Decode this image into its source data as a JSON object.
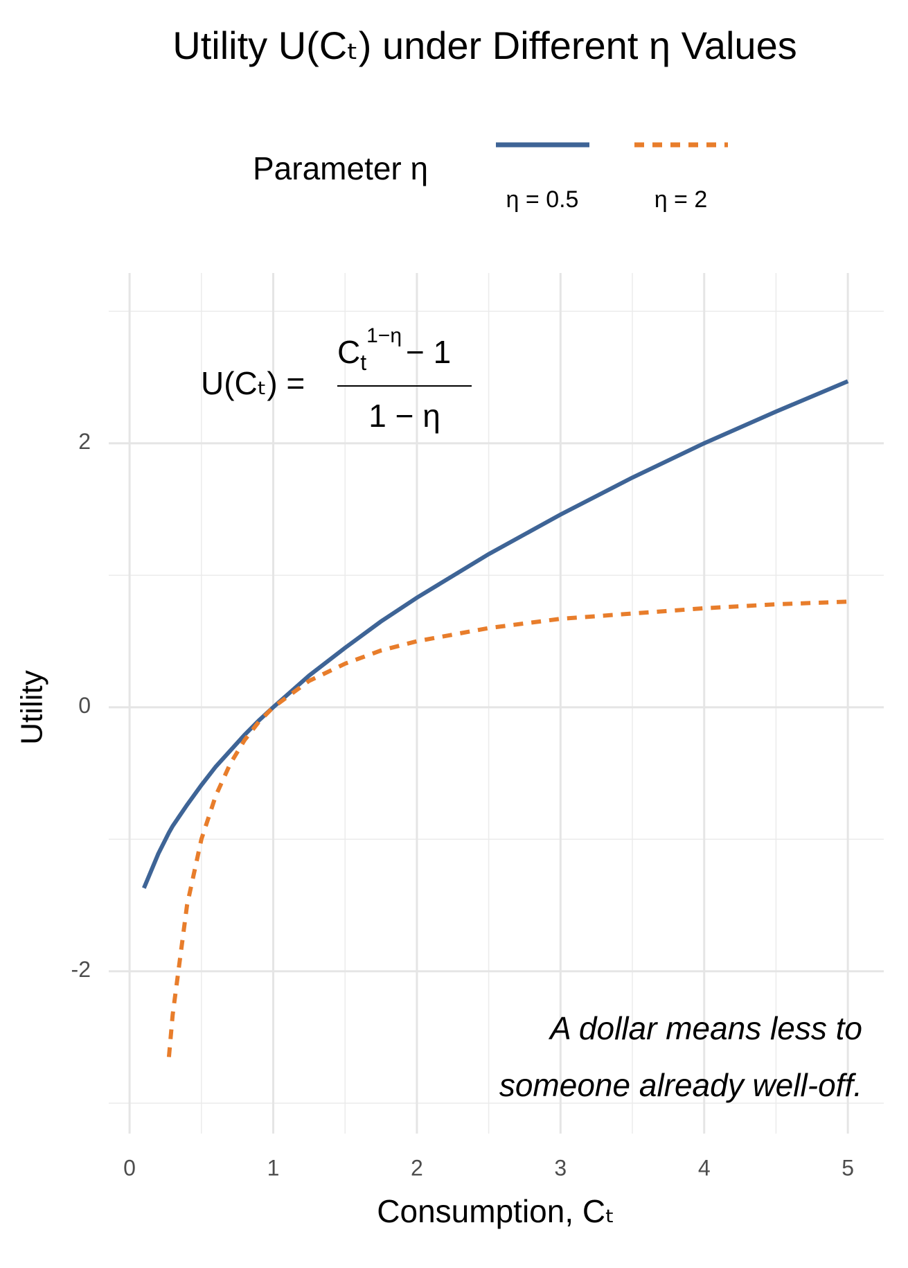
{
  "chart_data": {
    "type": "line",
    "title": "Utility U(Cₜ) under Different η Values",
    "x_label": "Consumption, Cₜ",
    "y_label": "Utility",
    "legend_title": "Parameter η",
    "legend_position": "top",
    "x": [
      0.1,
      0.2,
      0.274,
      0.3,
      0.4,
      0.5,
      0.6,
      0.7,
      0.8,
      0.9,
      1,
      1.25,
      1.5,
      1.75,
      2,
      2.5,
      3,
      3.5,
      4,
      4.5,
      5
    ],
    "series": [
      {
        "name": "η = 0.5",
        "color": "#3e6496",
        "dash": "solid",
        "values": [
          -1.37,
          -1.11,
          -0.95,
          -0.9,
          -0.74,
          -0.59,
          -0.45,
          -0.33,
          -0.21,
          -0.1,
          0,
          0.24,
          0.45,
          0.65,
          0.83,
          1.16,
          1.46,
          1.74,
          2,
          2.24,
          2.47
        ]
      },
      {
        "name": "η = 2",
        "color": "#e87d2b",
        "dash": "dotted",
        "values": [
          null,
          null,
          -2.65,
          -2.33,
          -1.5,
          -1,
          -0.67,
          -0.43,
          -0.25,
          -0.11,
          0,
          0.2,
          0.33,
          0.43,
          0.5,
          0.6,
          0.67,
          0.71,
          0.75,
          0.78,
          0.8
        ]
      }
    ],
    "xlim": [
      -0.145,
      5.25
    ],
    "ylim": [
      -3.23,
      3.29
    ],
    "xticks": [
      0,
      1,
      2,
      3,
      4,
      5
    ],
    "yticks": [
      -2,
      0,
      2
    ],
    "x_minor_ticks": [
      0.5,
      1.5,
      2.5,
      3.5,
      4.5
    ],
    "y_minor_ticks": [
      -3,
      -1,
      1,
      3
    ],
    "grid": true,
    "formula": {
      "lhs": "U(Cₜ) =",
      "numerator_base": "C",
      "numerator_sub": "t",
      "numerator_sup": "1−η",
      "numerator_rest": "− 1",
      "denominator": "1 − η"
    },
    "annotation": [
      "A dollar means less to",
      "someone already well-off."
    ]
  }
}
